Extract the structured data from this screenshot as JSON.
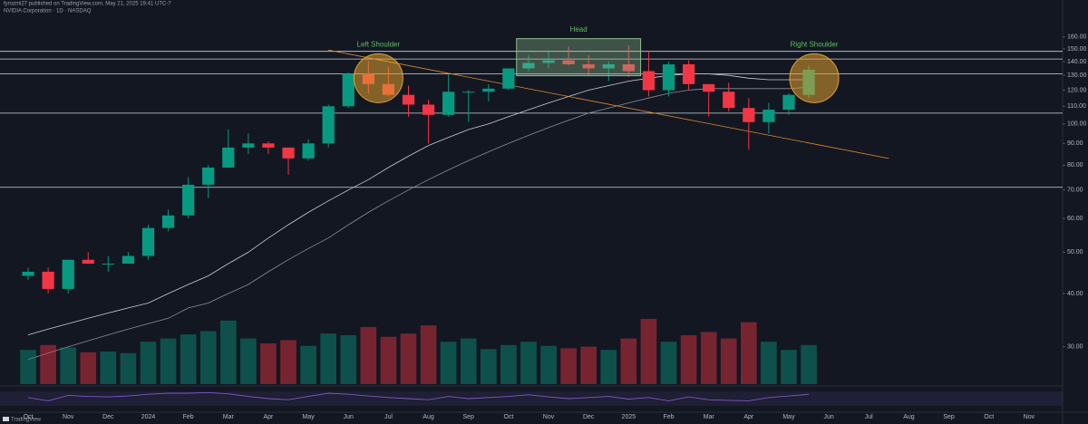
{
  "header": {
    "publisher": "fyrozmi27 published on TradingView.com, May 21, 2025 19:41 UTC-7",
    "title": "NVIDIA Corporation · 1D · NASDAQ",
    "brand": "TradingView"
  },
  "chart_data": [
    {
      "type": "candlestick",
      "categories": [
        "Oct",
        null,
        "Nov",
        null,
        "Dec",
        null,
        "2024",
        null,
        "Feb",
        null,
        "Mar",
        null,
        "Apr",
        null,
        "May",
        null,
        "Jun",
        null,
        "Jul",
        null,
        "Aug",
        null,
        "Sep",
        null,
        "Oct",
        null,
        "Nov",
        null,
        "Dec",
        null,
        "2025",
        null,
        "Feb",
        null,
        "Mar",
        null,
        "Apr",
        null,
        "May",
        null,
        "Jun",
        null,
        "Jul",
        null,
        "Aug",
        null,
        "Sep",
        null,
        "Oct",
        null,
        "Nov",
        null
      ],
      "open": [
        44,
        45,
        41,
        48,
        47,
        47,
        49,
        57,
        61,
        72,
        79,
        88,
        90,
        88,
        83,
        90,
        110,
        131,
        124,
        117,
        111,
        105,
        119,
        119,
        121,
        135,
        139,
        141,
        138,
        135,
        138,
        133,
        120,
        138,
        124,
        119,
        109,
        101,
        108,
        117,
        null,
        null,
        null,
        null,
        null,
        null,
        null,
        null,
        null,
        null,
        null,
        null
      ],
      "high": [
        46,
        46,
        48,
        50,
        49,
        50,
        58,
        63,
        75,
        80,
        97,
        95,
        91,
        88,
        92,
        111,
        132,
        140,
        136,
        123,
        114,
        131,
        120,
        124,
        135,
        145,
        149,
        152,
        145,
        140,
        153,
        148,
        140,
        141,
        124,
        125,
        115,
        112,
        118,
        137,
        null,
        null,
        null,
        null,
        null,
        null,
        null,
        null,
        null,
        null,
        null,
        null
      ],
      "low": [
        43,
        40,
        40,
        47,
        45,
        47,
        48,
        56,
        60,
        67,
        79,
        85,
        85,
        76,
        82,
        88,
        109,
        118,
        116,
        104,
        90,
        104,
        101,
        113,
        120,
        133,
        135,
        137,
        130,
        126,
        129,
        116,
        116,
        120,
        104,
        107,
        87,
        95,
        105,
        115,
        null,
        null,
        null,
        null,
        null,
        null,
        null,
        null,
        null,
        null,
        null,
        null
      ],
      "close": [
        45,
        41,
        48,
        47,
        47,
        49,
        57,
        61,
        72,
        79,
        88,
        90,
        88,
        83,
        90,
        110,
        131,
        124,
        117,
        111,
        105,
        119,
        119,
        121,
        135,
        139,
        141,
        138,
        135,
        138,
        133,
        120,
        138,
        124,
        119,
        109,
        101,
        108,
        117,
        134,
        null,
        null,
        null,
        null,
        null,
        null,
        null,
        null,
        null,
        null,
        null,
        null
      ],
      "up_color": "#089981",
      "down_color": "#f23645",
      "overlays": [
        {
          "color": "#c9ccd4",
          "values": [
            32,
            33,
            34,
            35,
            36,
            37,
            38,
            40,
            42,
            44,
            47,
            50,
            54,
            58,
            62,
            66,
            70,
            74,
            79,
            84,
            89,
            93,
            97,
            100,
            104,
            108,
            112,
            116,
            120,
            123,
            126,
            128,
            130,
            131,
            131,
            130,
            128,
            127,
            127,
            127,
            null,
            null,
            null,
            null,
            null,
            null,
            null,
            null,
            null,
            null,
            null,
            null
          ]
        },
        {
          "color": "#8a8e99",
          "values": [
            28,
            29,
            30,
            31,
            32,
            33,
            34,
            35,
            37,
            38,
            40,
            42,
            45,
            48,
            51,
            54,
            58,
            62,
            66,
            70,
            74,
            78,
            82,
            86,
            90,
            94,
            98,
            102,
            106,
            109,
            112,
            115,
            118,
            120,
            121,
            121,
            121,
            121,
            121,
            122,
            null,
            null,
            null,
            null,
            null,
            null,
            null,
            null,
            null,
            null,
            null,
            null
          ]
        }
      ],
      "levels": [
        148,
        142,
        131,
        106,
        71
      ],
      "level_color": "#d1d4dc",
      "neckline": [
        149,
        83
      ],
      "neckline_color": "#e08a2e",
      "annotations": [
        "Left Shoulder",
        "Head",
        "Right Shoulder"
      ],
      "log_scale": true,
      "ylim": [
        25,
        186
      ],
      "yticks": [
        {
          "value": 30,
          "label": "30.00"
        },
        {
          "value": 40,
          "label": "40.00"
        },
        {
          "value": 50,
          "label": "50.00"
        },
        {
          "value": 60,
          "label": "60.00"
        },
        {
          "value": 70,
          "label": "70.00"
        },
        {
          "value": 80,
          "label": "80.00"
        },
        {
          "value": 90,
          "label": "90.00"
        },
        {
          "value": 100,
          "label": "100.00"
        },
        {
          "value": 110,
          "label": "110.00"
        },
        {
          "value": 120,
          "label": "120.00"
        },
        {
          "value": 130,
          "label": "130.00"
        },
        {
          "value": 140,
          "label": "140.00"
        },
        {
          "value": 150,
          "label": "150.00"
        },
        {
          "value": 160,
          "label": "160.00"
        }
      ],
      "grid": false
    },
    {
      "type": "bar",
      "values": [
        420,
        480,
        450,
        390,
        400,
        380,
        520,
        560,
        610,
        650,
        780,
        560,
        500,
        540,
        470,
        620,
        600,
        700,
        580,
        620,
        720,
        520,
        560,
        430,
        480,
        520,
        470,
        440,
        460,
        420,
        560,
        800,
        520,
        600,
        640,
        560,
        760,
        520,
        420,
        480,
        null,
        null,
        null,
        null,
        null,
        null,
        null,
        null,
        null,
        null,
        null,
        null
      ],
      "ylim": [
        0,
        1000
      ]
    },
    {
      "type": "line",
      "color": "#7e57c2",
      "values": [
        55,
        40,
        65,
        60,
        58,
        62,
        70,
        75,
        75,
        78,
        72,
        60,
        50,
        45,
        60,
        75,
        70,
        62,
        55,
        50,
        45,
        60,
        50,
        55,
        60,
        68,
        58,
        50,
        55,
        60,
        48,
        55,
        40,
        58,
        45,
        42,
        40,
        55,
        62,
        70,
        null,
        null,
        null,
        null,
        null,
        null,
        null,
        null,
        null,
        null,
        null,
        null
      ],
      "ylim": [
        0,
        100
      ]
    }
  ]
}
